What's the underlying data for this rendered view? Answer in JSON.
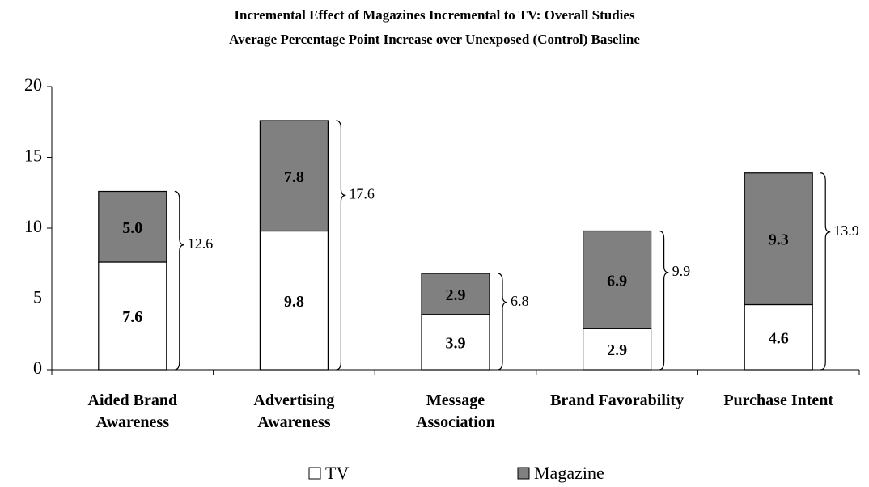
{
  "chart_data": {
    "type": "stacked_bar",
    "title": "Incremental Effect of Magazines Incremental to TV: Overall Studies",
    "subtitle": "Average Percentage Point Increase over Unexposed (Control) Baseline",
    "categories": [
      "Aided Brand Awareness",
      "Advertising Awareness",
      "Message Association",
      "Brand Favorability",
      "Purchase Intent"
    ],
    "series": [
      {
        "name": "TV",
        "color": "#ffffff",
        "values": [
          7.6,
          9.8,
          3.9,
          2.9,
          4.6
        ],
        "value_labels": [
          "7.6",
          "9.8",
          "3.9",
          "2.9",
          "4.6"
        ]
      },
      {
        "name": "Magazine",
        "color": "#808080",
        "values": [
          5.0,
          7.8,
          2.9,
          6.9,
          9.3
        ],
        "value_labels": [
          "5.0",
          "7.8",
          "2.9",
          "6.9",
          "9.3"
        ]
      }
    ],
    "total_labels": [
      "12.6",
      "17.6",
      "6.8",
      "9.9",
      "13.9"
    ],
    "ylim": [
      0,
      20
    ],
    "yticks": [
      0,
      5,
      10,
      15,
      20
    ],
    "grid": false,
    "legend": "bottom"
  }
}
